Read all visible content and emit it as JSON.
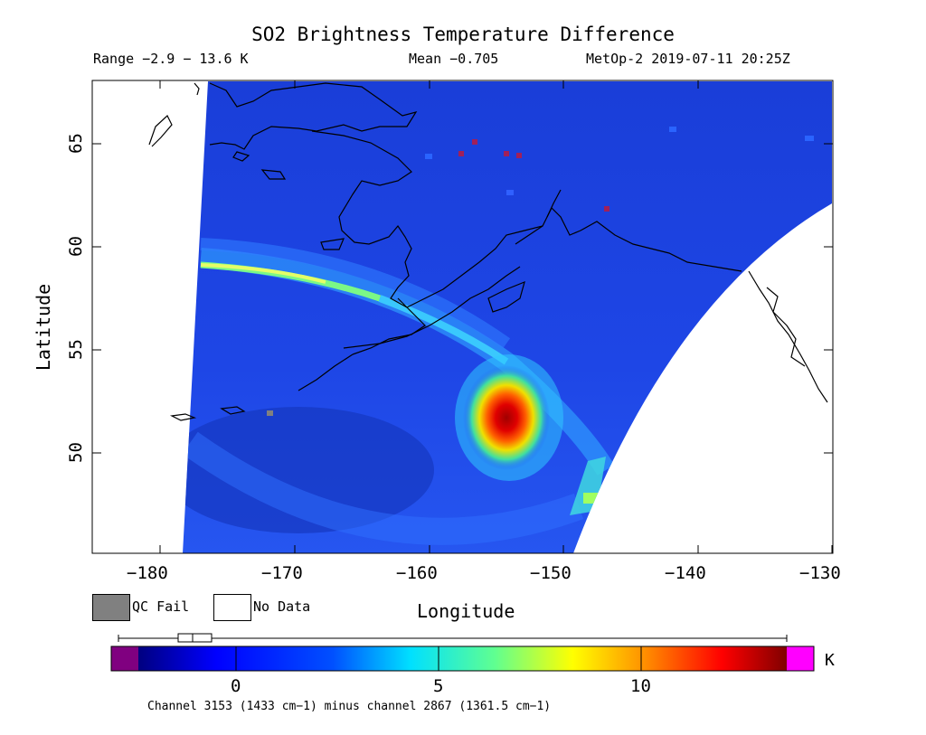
{
  "title": "SO2 Brightness Temperature Difference",
  "range_text": "Range −2.9 − 13.6 K",
  "mean_text": "Mean −0.705",
  "satellite_text": "MetOp-2 2019-07-11 20:25Z",
  "axes": {
    "xlabel": "Longitude",
    "ylabel": "Latitude",
    "x_ticks": [
      "−180",
      "−170",
      "−160",
      "−150",
      "−140",
      "−130"
    ],
    "y_ticks": [
      "50",
      "55",
      "60",
      "65"
    ],
    "xlim": [
      -185,
      -130
    ],
    "ylim": [
      45,
      68
    ]
  },
  "legend": {
    "qc_fail": "QC Fail",
    "no_data": "No Data",
    "qc_fail_color": "#808080",
    "no_data_color": "#ffffff"
  },
  "colorbar": {
    "unit": "K",
    "ticks": [
      "0",
      "5",
      "10"
    ],
    "range": [
      -2.9,
      13.6
    ],
    "under_color": "#800080",
    "over_color": "#ff00ff"
  },
  "footnote": "Channel 3153 (1433 cm−1) minus channel 2867 (1361.5 cm−1)",
  "features": {
    "plume_center": {
      "lon": -153.5,
      "lat": 51.8
    },
    "plume_peak_k": 13.6
  }
}
